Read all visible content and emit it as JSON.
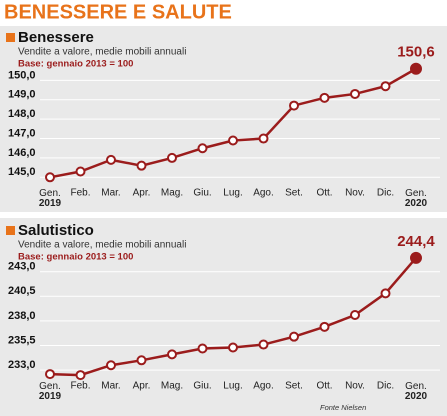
{
  "header": {
    "title": "BENESSERE E SALUTE"
  },
  "chart_data": [
    {
      "type": "line",
      "title": "Benessere",
      "subtitle": "Vendite a valore, medie mobili annuali",
      "note": "Base: gennaio 2013 = 100",
      "categories": [
        "Gen.\n2019",
        "Feb.",
        "Mar.",
        "Apr.",
        "Mag.",
        "Giu.",
        "Lug.",
        "Ago.",
        "Set.",
        "Ott.",
        "Nov.",
        "Dic.",
        "Gen.\n2020"
      ],
      "values": [
        145.0,
        145.3,
        145.9,
        145.6,
        146.0,
        146.5,
        146.9,
        147.0,
        148.7,
        149.1,
        149.3,
        149.7,
        150.6
      ],
      "value_labels": [
        null,
        null,
        null,
        null,
        null,
        null,
        null,
        null,
        null,
        null,
        null,
        null,
        "150,6"
      ],
      "color": "#9b1c1c",
      "ylim": [
        144.5,
        151.0
      ],
      "yticks": [
        {
          "value": 145,
          "label": "145,0"
        },
        {
          "value": 146,
          "label": "146,0"
        },
        {
          "value": 147,
          "label": "147,0"
        },
        {
          "value": 148,
          "label": "148,0"
        },
        {
          "value": 149,
          "label": "149,0"
        },
        {
          "value": 150,
          "label": "150,0"
        }
      ],
      "grid": true
    },
    {
      "type": "line",
      "title": "Salutistico",
      "subtitle": "Vendite a valore, medie mobili annuali",
      "note": "Base: gennaio 2013 = 100",
      "categories": [
        "Gen.\n2019",
        "Feb.",
        "Mar.",
        "Apr.",
        "Mag.",
        "Giu.",
        "Lug.",
        "Ago.",
        "Set.",
        "Ott.",
        "Nov.",
        "Dic.",
        "Gen.\n2020"
      ],
      "values": [
        232.6,
        232.5,
        233.5,
        234.0,
        234.6,
        235.2,
        235.3,
        235.6,
        236.4,
        237.4,
        238.6,
        240.8,
        244.4
      ],
      "value_labels": [
        null,
        null,
        null,
        null,
        null,
        null,
        null,
        null,
        null,
        null,
        null,
        null,
        "244,4"
      ],
      "color": "#9b1c1c",
      "ylim": [
        232.0,
        245.0
      ],
      "yticks": [
        {
          "value": 233,
          "label": "233,0"
        },
        {
          "value": 235.5,
          "label": "235,5"
        },
        {
          "value": 238,
          "label": "238,0"
        },
        {
          "value": 240.5,
          "label": "240,5"
        },
        {
          "value": 243,
          "label": "243,0"
        }
      ],
      "grid": true
    }
  ],
  "source": "Fonte Nielsen"
}
